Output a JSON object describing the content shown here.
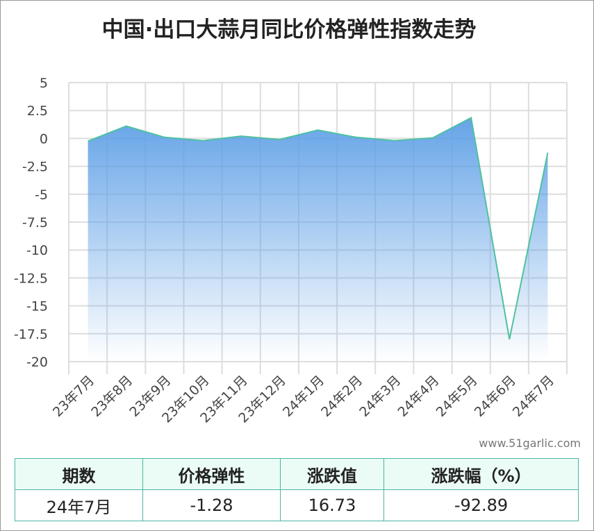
{
  "chart_data": {
    "type": "area-line",
    "title": "中国·出口大蒜月同比价格弹性指数走势",
    "categories": [
      "23年7月",
      "23年8月",
      "23年9月",
      "23年10月",
      "23年11月",
      "23年12月",
      "24年1月",
      "24年2月",
      "24年3月",
      "24年4月",
      "24年5月",
      "24年6月",
      "24年7月"
    ],
    "values": [
      -0.25,
      1.1,
      0.1,
      -0.2,
      0.2,
      -0.1,
      0.75,
      0.1,
      -0.2,
      0.05,
      1.85,
      -18,
      -1.28
    ],
    "color": "#4fc1a0",
    "fill_color": "#5d9fe6",
    "ylim": [
      -20,
      5
    ],
    "yticks": [
      5,
      2.5,
      0,
      -2.5,
      -5,
      -7.5,
      -10,
      -12.5,
      -15,
      -17.5,
      -20
    ],
    "grid": true
  },
  "watermark": "www.51garlic.com",
  "table": {
    "header": [
      "期数",
      "价格弹性",
      "涨跌值",
      "涨跌幅（%）"
    ],
    "rows": [
      [
        "24年7月",
        "-1.28",
        "16.73",
        "-92.89"
      ]
    ]
  }
}
